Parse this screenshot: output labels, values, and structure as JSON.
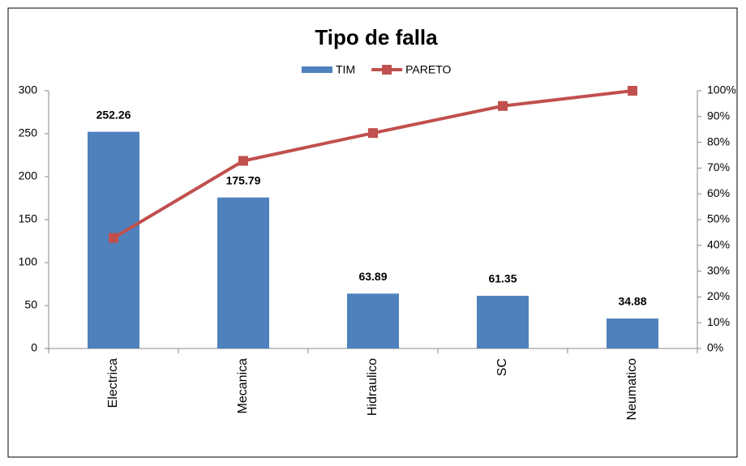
{
  "chart_data": {
    "type": "bar",
    "title": "Tipo de falla",
    "categories": [
      "Electrica",
      "Mecanica",
      "Hidraulico",
      "SC",
      "Neumatico"
    ],
    "series": [
      {
        "name": "TIM",
        "type": "bar",
        "color": "#4f81bd",
        "values": [
          252.26,
          175.79,
          63.89,
          61.35,
          34.88
        ]
      },
      {
        "name": "PARETO",
        "type": "line",
        "axis": "y2",
        "color": "#c0504d",
        "values": [
          42.9,
          72.8,
          83.6,
          94.1,
          100
        ]
      }
    ],
    "ylim": [
      0,
      300
    ],
    "yticks": [
      0,
      50,
      100,
      150,
      200,
      250,
      300
    ],
    "y2lim": [
      0,
      100
    ],
    "y2ticks": [
      {
        "value": 0,
        "label": "0%"
      },
      {
        "value": 10,
        "label": "10%"
      },
      {
        "value": 20,
        "label": "20%"
      },
      {
        "value": 30,
        "label": "30%"
      },
      {
        "value": 40,
        "label": "40%"
      },
      {
        "value": 50,
        "label": "50%"
      },
      {
        "value": 60,
        "label": "60%"
      },
      {
        "value": 70,
        "label": "70%"
      },
      {
        "value": 80,
        "label": "80%"
      },
      {
        "value": 90,
        "label": "90%"
      },
      {
        "value": 100,
        "label": "100%"
      }
    ],
    "legend": "top"
  }
}
